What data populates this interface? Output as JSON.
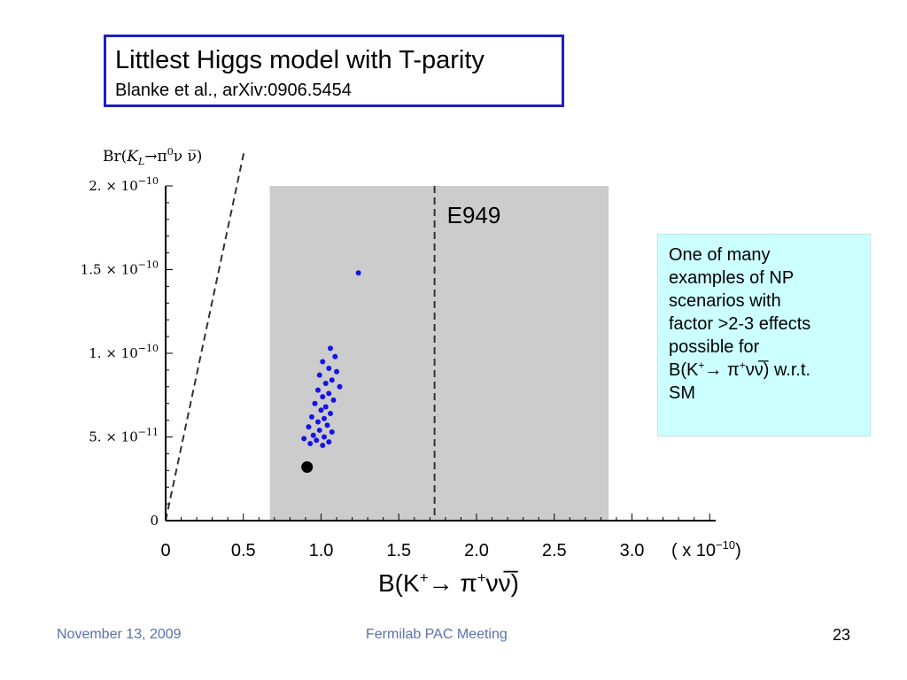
{
  "title_box": {
    "title": "Littlest Higgs model with T-parity",
    "subtitle": "Blanke et al., arXiv:0906.5454"
  },
  "note": {
    "text_lines": [
      "One of many",
      "examples of NP",
      "scenarios with",
      "factor >2-3 effects",
      "possible for"
    ],
    "formula_prefix": "B(K",
    "formula_sup1": "+",
    "formula_arrow": "→ π",
    "formula_sup2": "+",
    "formula_nu": "νν̅",
    "formula_suffix": ") w.r.t.",
    "last_line": "SM"
  },
  "chart_data": {
    "type": "scatter",
    "y_axis_title": "Br(K_L → π⁰ ν ν̅)",
    "y_axis_title_parts": [
      "Br(",
      "K",
      "L",
      "→π",
      "0",
      "ν ν̅)"
    ],
    "x_axis_title_parts": [
      "B(K",
      "+",
      "→ π",
      "+",
      "νν̅",
      ")"
    ],
    "xlim": [
      0,
      3.5
    ],
    "ylim": [
      0,
      2e-10
    ],
    "x_unit_label": "( x 10",
    "x_unit_exp": "−10",
    "x_ticks": [
      {
        "value": 0,
        "label": "0"
      },
      {
        "value": 0.5,
        "label": "0.5"
      },
      {
        "value": 1.0,
        "label": "1.0"
      },
      {
        "value": 1.5,
        "label": "1.5"
      },
      {
        "value": 2.0,
        "label": "2.0"
      },
      {
        "value": 2.5,
        "label": "2.5"
      },
      {
        "value": 3.0,
        "label": "3.0"
      }
    ],
    "y_ticks": [
      {
        "value": 0,
        "mant": "0",
        "exp": ""
      },
      {
        "value": 5e-11,
        "mant": "5. × 10",
        "exp": "−11"
      },
      {
        "value": 1e-10,
        "mant": "1. × 10",
        "exp": "−10"
      },
      {
        "value": 1.5e-10,
        "mant": "1.5 × 10",
        "exp": "−10"
      },
      {
        "value": 2e-10,
        "mant": "2. × 10",
        "exp": "−10"
      }
    ],
    "exp_band": {
      "x_from": 0.67,
      "x_to": 2.85,
      "label": "E949",
      "central": 1.73,
      "color": "#cccccc"
    },
    "gn_bound_slope": 4.37,
    "sm_point": {
      "x": 0.91,
      "y": 3.2e-11
    },
    "point_color": "#1414e6",
    "series": [
      {
        "points": [
          [
            1.24,
            1.48e-10
          ],
          [
            1.06,
            1.03e-10
          ],
          [
            1.09,
            9.8e-11
          ],
          [
            1.01,
            9.5e-11
          ],
          [
            1.05,
            9.1e-11
          ],
          [
            1.1,
            8.9e-11
          ],
          [
            0.99,
            8.7e-11
          ],
          [
            1.07,
            8.4e-11
          ],
          [
            1.03,
            8.2e-11
          ],
          [
            1.12,
            8e-11
          ],
          [
            0.98,
            7.8e-11
          ],
          [
            1.05,
            7.6e-11
          ],
          [
            1.01,
            7.4e-11
          ],
          [
            1.08,
            7.2e-11
          ],
          [
            0.96,
            7e-11
          ],
          [
            1.03,
            6.8e-11
          ],
          [
            1.0,
            6.6e-11
          ],
          [
            1.06,
            6.4e-11
          ],
          [
            0.94,
            6.2e-11
          ],
          [
            1.02,
            6.1e-11
          ],
          [
            0.98,
            5.9e-11
          ],
          [
            1.04,
            5.7e-11
          ],
          [
            0.92,
            5.6e-11
          ],
          [
            0.99,
            5.4e-11
          ],
          [
            1.07,
            5.3e-11
          ],
          [
            0.95,
            5.1e-11
          ],
          [
            1.02,
            5e-11
          ],
          [
            0.89,
            4.9e-11
          ],
          [
            0.97,
            4.8e-11
          ],
          [
            1.05,
            4.7e-11
          ],
          [
            0.93,
            4.6e-11
          ],
          [
            1.01,
            4.5e-11
          ]
        ]
      }
    ]
  },
  "footer": {
    "date": "November 13, 2009",
    "meeting": "Fermilab PAC Meeting",
    "page": "23"
  }
}
